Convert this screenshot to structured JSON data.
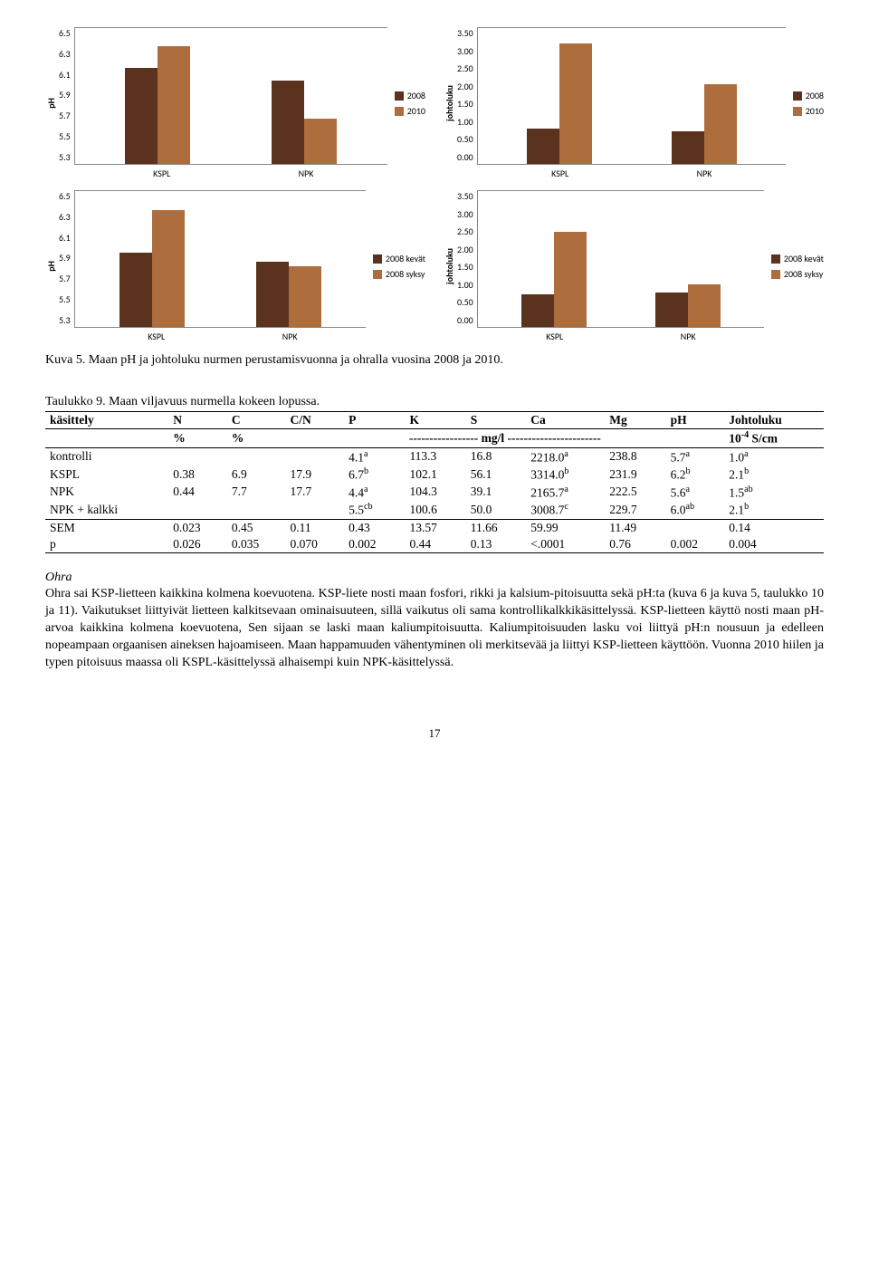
{
  "charts": {
    "ph_year": {
      "ylabel": "pH",
      "ymin": 5.3,
      "ymax": 6.5,
      "ystep": 0.2,
      "categories": [
        "KSPL",
        "NPK"
      ],
      "series": [
        {
          "name": "2008",
          "color": "#5a321e",
          "values": [
            6.15,
            6.04
          ]
        },
        {
          "name": "2010",
          "color": "#ad6d3d",
          "values": [
            6.34,
            5.7
          ]
        }
      ]
    },
    "johtoluku_year": {
      "ylabel": "johtoluku",
      "ymin": 0.0,
      "ymax": 3.5,
      "ystep": 0.5,
      "categories": [
        "KSPL",
        "NPK"
      ],
      "series": [
        {
          "name": "2008",
          "color": "#5a321e",
          "values": [
            0.9,
            0.85
          ]
        },
        {
          "name": "2010",
          "color": "#ad6d3d",
          "values": [
            3.1,
            2.05
          ]
        }
      ]
    },
    "ph_season": {
      "ylabel": "pH",
      "ymin": 5.3,
      "ymax": 6.5,
      "ystep": 0.2,
      "categories": [
        "KSPL",
        "NPK"
      ],
      "series": [
        {
          "name": "2008 kevät",
          "color": "#5a321e",
          "values": [
            5.96,
            5.88
          ]
        },
        {
          "name": "2008 syksy",
          "color": "#ad6d3d",
          "values": [
            6.33,
            5.84
          ]
        }
      ]
    },
    "johtoluku_season": {
      "ylabel": "johtoluku",
      "ymin": 0.0,
      "ymax": 3.5,
      "ystep": 0.5,
      "categories": [
        "KSPL",
        "NPK"
      ],
      "series": [
        {
          "name": "2008 kevät",
          "color": "#5a321e",
          "values": [
            0.85,
            0.88
          ]
        },
        {
          "name": "2008 syksy",
          "color": "#ad6d3d",
          "values": [
            2.45,
            1.1
          ]
        }
      ]
    }
  },
  "figure_caption": "Kuva 5. Maan pH ja johtoluku nurmen perustamisvuonna ja ohralla vuosina 2008 ja 2010.",
  "table_caption": "Taulukko 9. Maan viljavuus nurmella kokeen lopussa.",
  "table": {
    "headers": [
      "käsittely",
      "N",
      "C",
      "C/N",
      "P",
      "K",
      "S",
      "Ca",
      "Mg",
      "pH",
      "Johtoluku"
    ],
    "units_row": [
      "",
      "%",
      "%",
      "",
      "----------------- mg/l -----------------------",
      "",
      "",
      "",
      "",
      "",
      "10⁻⁴ S/cm"
    ],
    "rows": [
      {
        "label": "kontrolli",
        "N": "",
        "C": "",
        "CN": "",
        "P": "4.1",
        "Psup": "a",
        "K": "113.3",
        "S": "16.8",
        "Ca": "2218.0",
        "Casup": "a",
        "Mg": "238.8",
        "pH": "5.7",
        "pHsup": "a",
        "J": "1.0",
        "Jsup": "a"
      },
      {
        "label": "KSPL",
        "N": "0.38",
        "C": "6.9",
        "CN": "17.9",
        "P": "6.7",
        "Psup": "b",
        "K": "102.1",
        "S": "56.1",
        "Ca": "3314.0",
        "Casup": "b",
        "Mg": "231.9",
        "pH": "6.2",
        "pHsup": "b",
        "J": "2.1",
        "Jsup": "b"
      },
      {
        "label": "NPK",
        "N": "0.44",
        "C": "7.7",
        "CN": "17.7",
        "P": "4.4",
        "Psup": "a",
        "K": "104.3",
        "S": "39.1",
        "Ca": "2165.7",
        "Casup": "a",
        "Mg": "222.5",
        "pH": "5.6",
        "pHsup": "a",
        "J": "1.5",
        "Jsup": "ab"
      },
      {
        "label": "NPK + kalkki",
        "N": "",
        "C": "",
        "CN": "",
        "P": "5.5",
        "Psup": "cb",
        "K": "100.6",
        "S": "50.0",
        "Ca": "3008.7",
        "Casup": "c",
        "Mg": "229.7",
        "pH": "6.0",
        "pHsup": "ab",
        "J": "2.1",
        "Jsup": "b"
      },
      {
        "label": "SEM",
        "N": "0.023",
        "C": "0.45",
        "CN": "0.11",
        "P": "0.43",
        "K": "13.57",
        "S": "11.66",
        "Ca": "59.99",
        "Mg": "11.49",
        "pH": "",
        "J": "0.14"
      },
      {
        "label": "p",
        "N": "0.026",
        "C": "0.035",
        "CN": "0.070",
        "P": "0.002",
        "K": "0.44",
        "S": "0.13",
        "Ca": "<.0001",
        "Mg": "0.76",
        "pH": "0.002",
        "J": "0.004"
      }
    ]
  },
  "body_heading": "Ohra",
  "body_text": "Ohra sai KSP-lietteen kaikkina kolmena koevuotena. KSP-liete nosti maan fosfori, rikki ja kalsium-pitoisuutta sekä pH:ta (kuva 6 ja kuva 5, taulukko 10 ja 11). Vaikutukset liittyivät lietteen kalkitsevaan ominaisuuteen, sillä vaikutus oli sama kontrollikalkkikäsittelyssä. KSP-lietteen käyttö nosti maan pH-arvoa kaikkina kolmena koevuotena, Sen sijaan se laski maan kaliumpitoisuutta. Kaliumpitoisuuden lasku voi liittyä pH:n nousuun ja edelleen nopeampaan orgaanisen aineksen hajoamiseen. Maan happamuuden vähentyminen oli merkitsevää ja liittyi KSP-lietteen käyttöön. Vuonna 2010 hiilen ja typen pitoisuus maassa oli KSPL-käsittelyssä alhaisempi kuin NPK-käsittelyssä.",
  "page_number": "17"
}
